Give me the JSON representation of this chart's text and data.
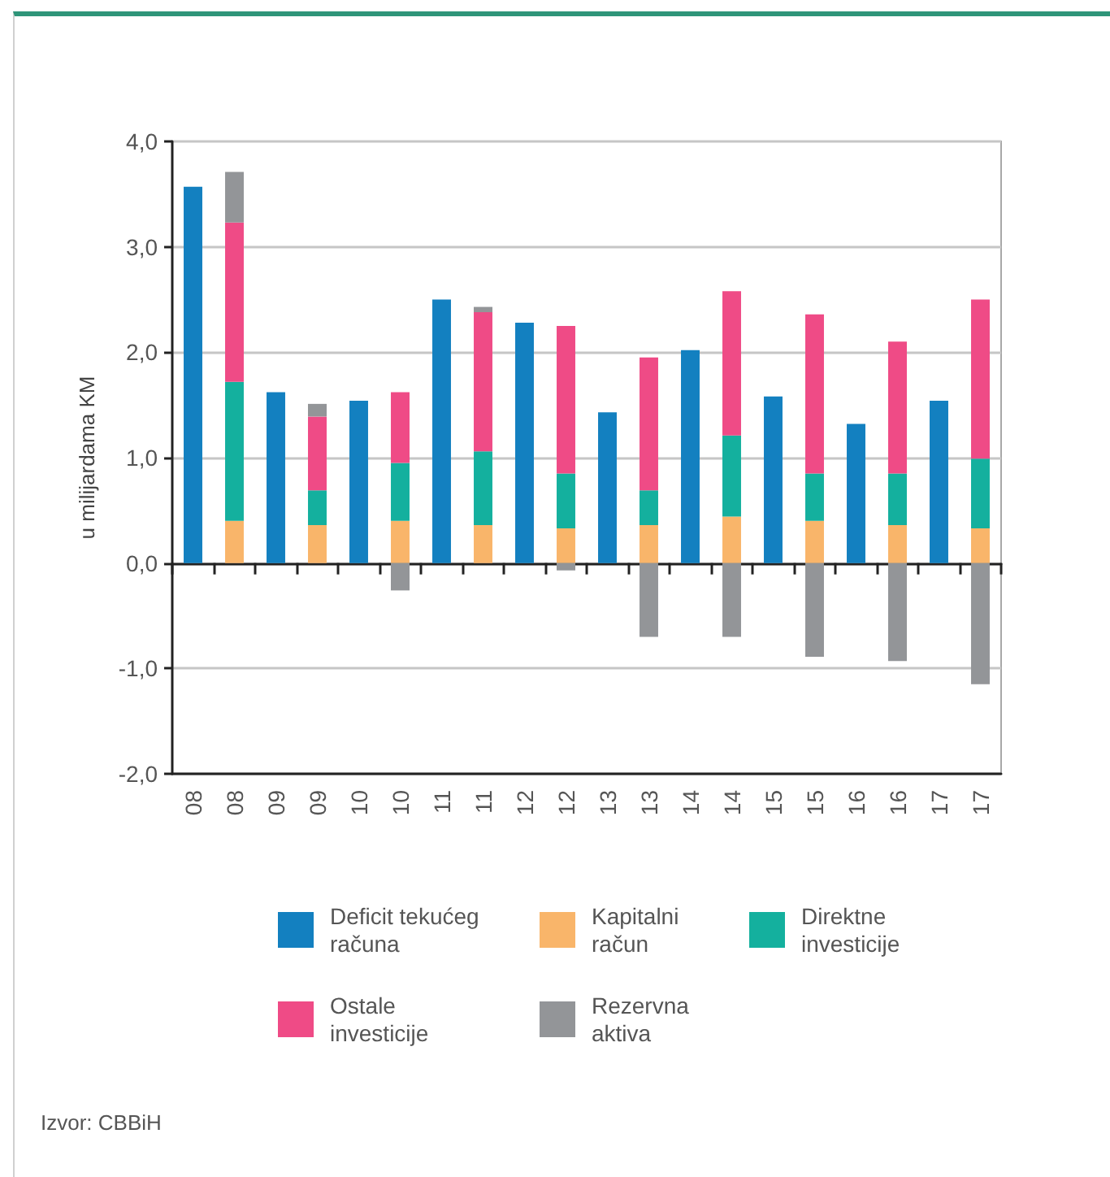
{
  "chart_data": {
    "type": "bar",
    "stacked": true,
    "categories": [
      "08",
      "08",
      "09",
      "09",
      "10",
      "10",
      "11",
      "11",
      "12",
      "12",
      "13",
      "13",
      "14",
      "14",
      "15",
      "15",
      "16",
      "16",
      "17",
      "17"
    ],
    "series": [
      {
        "name": "Deficit tekućeg računa",
        "color": "#1380c0",
        "values": [
          3.57,
          null,
          1.62,
          null,
          1.54,
          null,
          2.5,
          null,
          2.28,
          null,
          1.43,
          null,
          2.02,
          null,
          1.58,
          null,
          1.32,
          null,
          1.54,
          null
        ]
      },
      {
        "name": "Kapitalni račun",
        "color": "#f9b56a",
        "values": [
          null,
          0.4,
          null,
          0.36,
          null,
          0.4,
          null,
          0.36,
          null,
          0.33,
          null,
          0.36,
          null,
          0.44,
          null,
          0.4,
          null,
          0.36,
          null,
          0.33
        ]
      },
      {
        "name": "Direktne investicije",
        "color": "#14b09e",
        "values": [
          null,
          1.32,
          null,
          0.33,
          null,
          0.55,
          null,
          0.7,
          null,
          0.52,
          null,
          0.33,
          null,
          0.77,
          null,
          0.45,
          null,
          0.49,
          null,
          0.66
        ]
      },
      {
        "name": "Ostale investicije",
        "color": "#ef4b86",
        "values": [
          null,
          1.51,
          null,
          0.7,
          null,
          0.67,
          null,
          1.32,
          null,
          1.4,
          null,
          1.26,
          null,
          1.37,
          null,
          1.51,
          null,
          1.25,
          null,
          1.51
        ]
      },
      {
        "name": "Rezervna aktiva",
        "color": "#939598",
        "values": [
          null,
          0.48,
          null,
          0.12,
          null,
          -0.26,
          null,
          0.05,
          null,
          -0.07,
          null,
          -0.7,
          null,
          -0.7,
          null,
          -0.89,
          null,
          -0.93,
          null,
          -1.15
        ]
      }
    ],
    "ylabel": "u milijardama KM",
    "ylim": [
      -2,
      4
    ],
    "yticks": [
      {
        "value": -2,
        "label": "-2,0"
      },
      {
        "value": -1,
        "label": "-1,0"
      },
      {
        "value": 0,
        "label": "0,0"
      },
      {
        "value": 1,
        "label": "1,0"
      },
      {
        "value": 2,
        "label": "2,0"
      },
      {
        "value": 3,
        "label": "3,0"
      },
      {
        "value": 4,
        "label": "4,0"
      }
    ],
    "grid": "y",
    "legend": "bottom",
    "annotations": [
      "Izvor: CBBiH"
    ]
  }
}
